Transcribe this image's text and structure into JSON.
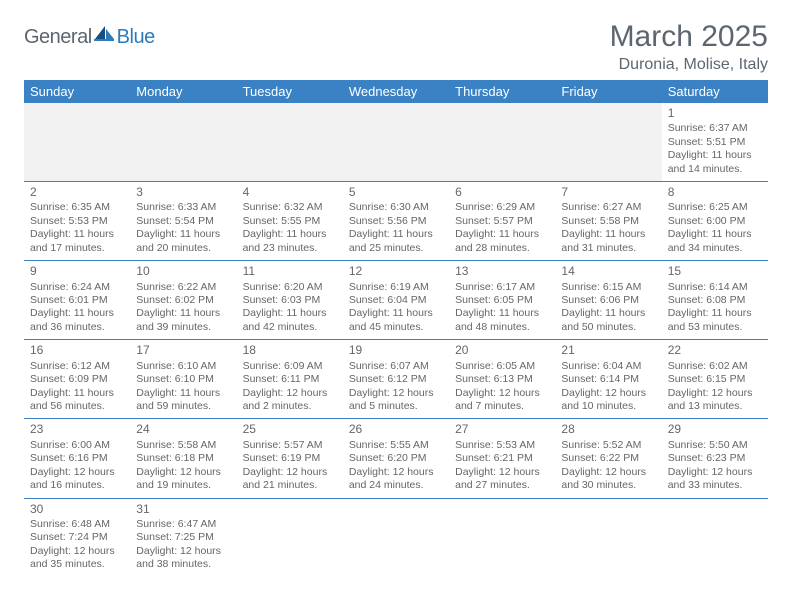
{
  "header": {
    "logo_part1": "General",
    "logo_part2": "Blue",
    "month_title": "March 2025",
    "location": "Duronia, Molise, Italy"
  },
  "colors": {
    "header_bg": "#3a82c4",
    "header_text": "#ffffff",
    "border": "#3a82c4",
    "empty_bg": "#f2f2f2",
    "text": "#666666",
    "title_text": "#5c6670",
    "logo_blue": "#2b7bbd"
  },
  "day_headers": [
    "Sunday",
    "Monday",
    "Tuesday",
    "Wednesday",
    "Thursday",
    "Friday",
    "Saturday"
  ],
  "weeks": [
    [
      null,
      null,
      null,
      null,
      null,
      null,
      {
        "n": "1",
        "sr": "Sunrise: 6:37 AM",
        "ss": "Sunset: 5:51 PM",
        "dl1": "Daylight: 11 hours",
        "dl2": "and 14 minutes."
      }
    ],
    [
      {
        "n": "2",
        "sr": "Sunrise: 6:35 AM",
        "ss": "Sunset: 5:53 PM",
        "dl1": "Daylight: 11 hours",
        "dl2": "and 17 minutes."
      },
      {
        "n": "3",
        "sr": "Sunrise: 6:33 AM",
        "ss": "Sunset: 5:54 PM",
        "dl1": "Daylight: 11 hours",
        "dl2": "and 20 minutes."
      },
      {
        "n": "4",
        "sr": "Sunrise: 6:32 AM",
        "ss": "Sunset: 5:55 PM",
        "dl1": "Daylight: 11 hours",
        "dl2": "and 23 minutes."
      },
      {
        "n": "5",
        "sr": "Sunrise: 6:30 AM",
        "ss": "Sunset: 5:56 PM",
        "dl1": "Daylight: 11 hours",
        "dl2": "and 25 minutes."
      },
      {
        "n": "6",
        "sr": "Sunrise: 6:29 AM",
        "ss": "Sunset: 5:57 PM",
        "dl1": "Daylight: 11 hours",
        "dl2": "and 28 minutes."
      },
      {
        "n": "7",
        "sr": "Sunrise: 6:27 AM",
        "ss": "Sunset: 5:58 PM",
        "dl1": "Daylight: 11 hours",
        "dl2": "and 31 minutes."
      },
      {
        "n": "8",
        "sr": "Sunrise: 6:25 AM",
        "ss": "Sunset: 6:00 PM",
        "dl1": "Daylight: 11 hours",
        "dl2": "and 34 minutes."
      }
    ],
    [
      {
        "n": "9",
        "sr": "Sunrise: 6:24 AM",
        "ss": "Sunset: 6:01 PM",
        "dl1": "Daylight: 11 hours",
        "dl2": "and 36 minutes."
      },
      {
        "n": "10",
        "sr": "Sunrise: 6:22 AM",
        "ss": "Sunset: 6:02 PM",
        "dl1": "Daylight: 11 hours",
        "dl2": "and 39 minutes."
      },
      {
        "n": "11",
        "sr": "Sunrise: 6:20 AM",
        "ss": "Sunset: 6:03 PM",
        "dl1": "Daylight: 11 hours",
        "dl2": "and 42 minutes."
      },
      {
        "n": "12",
        "sr": "Sunrise: 6:19 AM",
        "ss": "Sunset: 6:04 PM",
        "dl1": "Daylight: 11 hours",
        "dl2": "and 45 minutes."
      },
      {
        "n": "13",
        "sr": "Sunrise: 6:17 AM",
        "ss": "Sunset: 6:05 PM",
        "dl1": "Daylight: 11 hours",
        "dl2": "and 48 minutes."
      },
      {
        "n": "14",
        "sr": "Sunrise: 6:15 AM",
        "ss": "Sunset: 6:06 PM",
        "dl1": "Daylight: 11 hours",
        "dl2": "and 50 minutes."
      },
      {
        "n": "15",
        "sr": "Sunrise: 6:14 AM",
        "ss": "Sunset: 6:08 PM",
        "dl1": "Daylight: 11 hours",
        "dl2": "and 53 minutes."
      }
    ],
    [
      {
        "n": "16",
        "sr": "Sunrise: 6:12 AM",
        "ss": "Sunset: 6:09 PM",
        "dl1": "Daylight: 11 hours",
        "dl2": "and 56 minutes."
      },
      {
        "n": "17",
        "sr": "Sunrise: 6:10 AM",
        "ss": "Sunset: 6:10 PM",
        "dl1": "Daylight: 11 hours",
        "dl2": "and 59 minutes."
      },
      {
        "n": "18",
        "sr": "Sunrise: 6:09 AM",
        "ss": "Sunset: 6:11 PM",
        "dl1": "Daylight: 12 hours",
        "dl2": "and 2 minutes."
      },
      {
        "n": "19",
        "sr": "Sunrise: 6:07 AM",
        "ss": "Sunset: 6:12 PM",
        "dl1": "Daylight: 12 hours",
        "dl2": "and 5 minutes."
      },
      {
        "n": "20",
        "sr": "Sunrise: 6:05 AM",
        "ss": "Sunset: 6:13 PM",
        "dl1": "Daylight: 12 hours",
        "dl2": "and 7 minutes."
      },
      {
        "n": "21",
        "sr": "Sunrise: 6:04 AM",
        "ss": "Sunset: 6:14 PM",
        "dl1": "Daylight: 12 hours",
        "dl2": "and 10 minutes."
      },
      {
        "n": "22",
        "sr": "Sunrise: 6:02 AM",
        "ss": "Sunset: 6:15 PM",
        "dl1": "Daylight: 12 hours",
        "dl2": "and 13 minutes."
      }
    ],
    [
      {
        "n": "23",
        "sr": "Sunrise: 6:00 AM",
        "ss": "Sunset: 6:16 PM",
        "dl1": "Daylight: 12 hours",
        "dl2": "and 16 minutes."
      },
      {
        "n": "24",
        "sr": "Sunrise: 5:58 AM",
        "ss": "Sunset: 6:18 PM",
        "dl1": "Daylight: 12 hours",
        "dl2": "and 19 minutes."
      },
      {
        "n": "25",
        "sr": "Sunrise: 5:57 AM",
        "ss": "Sunset: 6:19 PM",
        "dl1": "Daylight: 12 hours",
        "dl2": "and 21 minutes."
      },
      {
        "n": "26",
        "sr": "Sunrise: 5:55 AM",
        "ss": "Sunset: 6:20 PM",
        "dl1": "Daylight: 12 hours",
        "dl2": "and 24 minutes."
      },
      {
        "n": "27",
        "sr": "Sunrise: 5:53 AM",
        "ss": "Sunset: 6:21 PM",
        "dl1": "Daylight: 12 hours",
        "dl2": "and 27 minutes."
      },
      {
        "n": "28",
        "sr": "Sunrise: 5:52 AM",
        "ss": "Sunset: 6:22 PM",
        "dl1": "Daylight: 12 hours",
        "dl2": "and 30 minutes."
      },
      {
        "n": "29",
        "sr": "Sunrise: 5:50 AM",
        "ss": "Sunset: 6:23 PM",
        "dl1": "Daylight: 12 hours",
        "dl2": "and 33 minutes."
      }
    ],
    [
      {
        "n": "30",
        "sr": "Sunrise: 6:48 AM",
        "ss": "Sunset: 7:24 PM",
        "dl1": "Daylight: 12 hours",
        "dl2": "and 35 minutes."
      },
      {
        "n": "31",
        "sr": "Sunrise: 6:47 AM",
        "ss": "Sunset: 7:25 PM",
        "dl1": "Daylight: 12 hours",
        "dl2": "and 38 minutes."
      },
      null,
      null,
      null,
      null,
      null
    ]
  ]
}
